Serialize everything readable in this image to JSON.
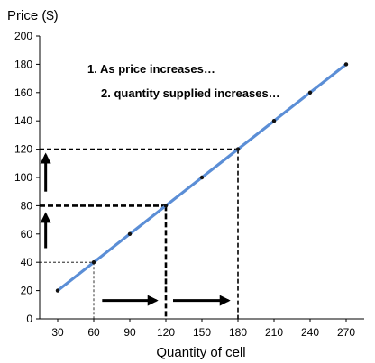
{
  "chart_data": {
    "type": "line",
    "ylabel": "Price ($)",
    "xlabel": "Quantity of cell",
    "x_ticks": [
      "30",
      "60",
      "90",
      "120",
      "150",
      "180",
      "210",
      "240",
      "270"
    ],
    "y_ticks": [
      "0",
      "20",
      "40",
      "60",
      "80",
      "100",
      "120",
      "140",
      "160",
      "180",
      "200"
    ],
    "xlim": [
      15,
      285
    ],
    "ylim": [
      0,
      200
    ],
    "grid": false,
    "series": [
      {
        "color": "#5b8ed6",
        "points": [
          {
            "x": 30,
            "y": 20
          },
          {
            "x": 60,
            "y": 40
          },
          {
            "x": 90,
            "y": 60
          },
          {
            "x": 120,
            "y": 80
          },
          {
            "x": 150,
            "y": 100
          },
          {
            "x": 180,
            "y": 120
          },
          {
            "x": 210,
            "y": 140
          },
          {
            "x": 240,
            "y": 160
          },
          {
            "x": 270,
            "y": 180
          }
        ]
      }
    ],
    "guides": [
      {
        "x": 60,
        "y": 40,
        "style": "thin"
      },
      {
        "x": 120,
        "y": 80,
        "style": "bold"
      },
      {
        "x": 180,
        "y": 120,
        "style": "medium"
      }
    ],
    "annotations": [
      "1.  As price increases…",
      "2. quantity supplied increases…"
    ],
    "arrows": [
      {
        "direction": "up",
        "x": 20,
        "y_from": 50,
        "y_to": 74
      },
      {
        "direction": "up",
        "x": 20,
        "y_from": 90,
        "y_to": 116
      },
      {
        "direction": "right",
        "y": 13,
        "x_from": 67,
        "x_to": 112
      },
      {
        "direction": "right",
        "y": 13,
        "x_from": 126,
        "x_to": 172
      }
    ]
  }
}
